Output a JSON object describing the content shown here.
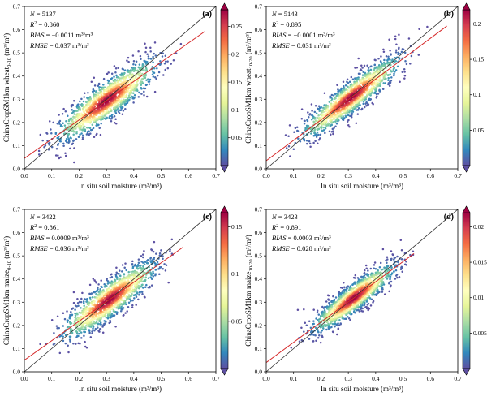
{
  "colorscale": [
    "#5e4fa2",
    "#3288bd",
    "#66c2a5",
    "#abdda4",
    "#e6f598",
    "#ffffbf",
    "#fee08b",
    "#fdae61",
    "#f46d43",
    "#d53e4f",
    "#9e0142"
  ],
  "fit_color": "#d62728",
  "chart_data": [
    {
      "type": "scatter",
      "panel": "(a)",
      "xlabel": "In situ soil moisture (m³/m³)",
      "ylabel_main": "ChinaCropSM1km wheat",
      "ylabel_sub": "0-10",
      "ylabel_unit": " (m³/m³)",
      "xlim": [
        0,
        0.7
      ],
      "ylim": [
        0,
        0.7
      ],
      "xticks": [
        "0.0",
        "0.1",
        "0.2",
        "0.3",
        "0.4",
        "0.5",
        "0.6",
        "0.7"
      ],
      "yticks": [
        "0.0",
        "0.1",
        "0.2",
        "0.3",
        "0.4",
        "0.5",
        "0.6",
        "0.7"
      ],
      "stats": {
        "N": "5137",
        "R2": "0.860",
        "BIAS": "−0.0011 m³/m³",
        "RMSE": "0.037 m³/m³"
      },
      "fit": {
        "intercept": 0.045,
        "slope": 0.83
      },
      "spread": 0.037,
      "xrange": [
        0.04,
        0.66
      ],
      "xmean": 0.3,
      "xsd": 0.085,
      "density_ticks": [
        0.05,
        0.1,
        0.15,
        0.2,
        0.25
      ],
      "density_max": 0.28
    },
    {
      "type": "scatter",
      "panel": "(b)",
      "xlabel": "In situ soil moisture (m³/m³)",
      "ylabel_main": "ChinaCropSM1km wheat",
      "ylabel_sub": "10-20",
      "ylabel_unit": " (m³/m³)",
      "xlim": [
        0,
        0.7
      ],
      "ylim": [
        0,
        0.7
      ],
      "xticks": [
        "0.0",
        "0.1",
        "0.2",
        "0.3",
        "0.4",
        "0.5",
        "0.6",
        "0.7"
      ],
      "yticks": [
        "0.0",
        "0.1",
        "0.2",
        "0.3",
        "0.4",
        "0.5",
        "0.6",
        "0.7"
      ],
      "stats": {
        "N": "5143",
        "R2": "0.895",
        "BIAS": "−0.0001 m³/m³",
        "RMSE": "0.031 m³/m³"
      },
      "fit": {
        "intercept": 0.035,
        "slope": 0.88
      },
      "spread": 0.031,
      "xrange": [
        0.04,
        0.66
      ],
      "xmean": 0.31,
      "xsd": 0.085,
      "density_ticks": [
        0.05,
        0.1,
        0.15,
        0.2
      ],
      "density_max": 0.22
    },
    {
      "type": "scatter",
      "panel": "(c)",
      "xlabel": "In situ soil moisture (m³/m³)",
      "ylabel_main": "ChinaCropSM1km maize",
      "ylabel_sub": "0-10",
      "ylabel_unit": " (m³/m³)",
      "xlim": [
        0,
        0.7
      ],
      "ylim": [
        0,
        0.7
      ],
      "xticks": [
        "0.0",
        "0.1",
        "0.2",
        "0.3",
        "0.4",
        "0.5",
        "0.6",
        "0.7"
      ],
      "yticks": [
        "0.0",
        "0.1",
        "0.2",
        "0.3",
        "0.4",
        "0.5",
        "0.6",
        "0.7"
      ],
      "stats": {
        "N": "3422",
        "R2": "0.861",
        "BIAS": "0.0009 m³/m³",
        "RMSE": "0.036 m³/m³"
      },
      "fit": {
        "intercept": 0.05,
        "slope": 0.84
      },
      "spread": 0.036,
      "xrange": [
        0.04,
        0.58
      ],
      "xmean": 0.31,
      "xsd": 0.08,
      "density_ticks": [
        0.05,
        0.1,
        0.15
      ],
      "density_max": 0.165
    },
    {
      "type": "scatter",
      "panel": "(d)",
      "xlabel": "In situ soil moisture (m³/m³)",
      "ylabel_main": "ChinaCropSM1km maize",
      "ylabel_sub": "10-20",
      "ylabel_unit": " (m³/m³)",
      "xlim": [
        0,
        0.7
      ],
      "ylim": [
        0,
        0.7
      ],
      "xticks": [
        "0.0",
        "0.1",
        "0.2",
        "0.3",
        "0.4",
        "0.5",
        "0.6",
        "0.7"
      ],
      "yticks": [
        "0.0",
        "0.1",
        "0.2",
        "0.3",
        "0.4",
        "0.5",
        "0.6",
        "0.7"
      ],
      "stats": {
        "N": "3423",
        "R2": "0.891",
        "BIAS": "0.0003 m³/m³",
        "RMSE": "0.028 m³/m³"
      },
      "fit": {
        "intercept": 0.04,
        "slope": 0.87
      },
      "spread": 0.028,
      "xrange": [
        0.06,
        0.54
      ],
      "xmean": 0.32,
      "xsd": 0.07,
      "density_ticks": [
        0.005,
        0.01,
        0.015,
        0.02
      ],
      "density_max": 0.022
    }
  ]
}
